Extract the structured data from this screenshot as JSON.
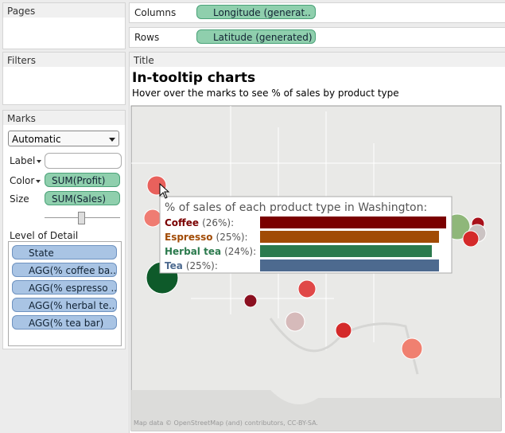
{
  "shelves": {
    "pages": "Pages",
    "columns_label": "Columns",
    "columns_pill": "Longitude (generat..",
    "rows_label": "Rows",
    "rows_pill": "Latitude (generated)",
    "filters": "Filters",
    "title_label": "Title"
  },
  "marks": {
    "label": "Marks",
    "type": "Automatic",
    "label_shelf": "Label",
    "color_shelf": "Color",
    "color_pill": "SUM(Profit)",
    "size_shelf": "Size",
    "size_pill": "SUM(Sales)",
    "detail_label": "Level of Detail",
    "detail_pills": [
      "State",
      "AGG(% coffee ba..",
      "AGG(% espresso ..",
      "AGG(% herbal te..",
      "AGG(% tea bar)"
    ]
  },
  "view": {
    "title": "In-tooltip charts",
    "subtitle": "Hover over the marks to see % of sales by product type",
    "attribution": "Map data © OpenStreetMap (and) contributors, CC-BY-SA."
  },
  "tooltip": {
    "title": "% of sales of each product type in Washington:",
    "rows": [
      {
        "name": "Coffee",
        "label": "(26%):",
        "value": 26,
        "color": "#7a0000"
      },
      {
        "name": "Espresso",
        "label": "(25%):",
        "value": 25,
        "color": "#a14b05"
      },
      {
        "name": "Herbal tea",
        "label": "(24%):",
        "value": 24,
        "color": "#2b7a4d"
      },
      {
        "name": "Tea",
        "label": "(25%):",
        "value": 25,
        "color": "#4d6a8f"
      }
    ]
  }
}
